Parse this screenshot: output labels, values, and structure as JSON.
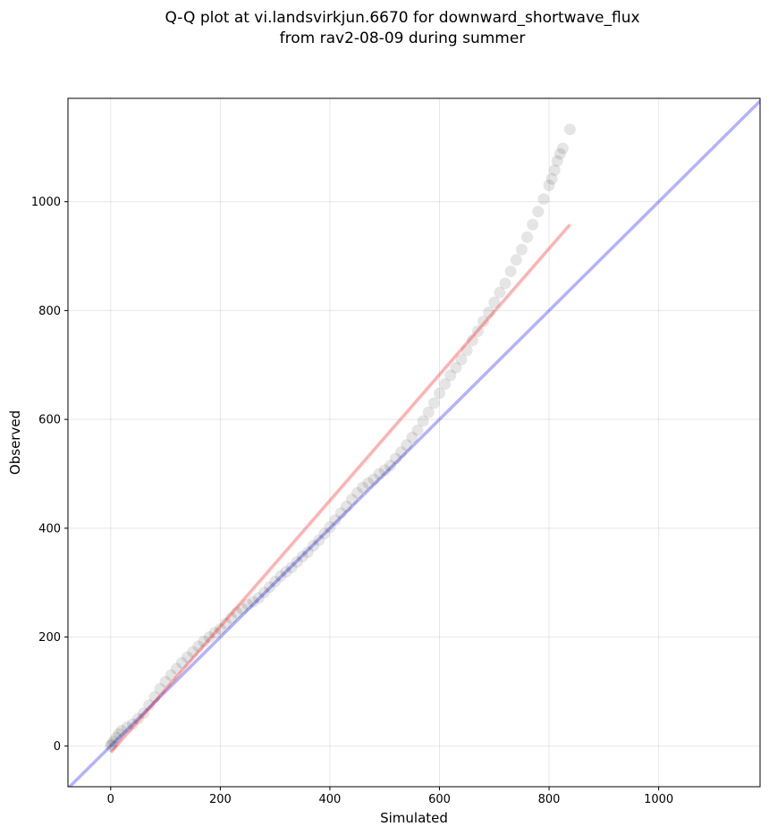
{
  "chart_data": {
    "type": "scatter",
    "title_lines": [
      "Q-Q plot at vi.landsvirkjun.6670 for downward_shortwave_flux",
      "from rav2-08-09 during summer"
    ],
    "xlabel": "Simulated",
    "ylabel": "Observed",
    "xlim": [
      -78,
      1185
    ],
    "ylim": [
      -75,
      1190
    ],
    "x_ticks": [
      0,
      200,
      400,
      600,
      800,
      1000
    ],
    "y_ticks": [
      0,
      200,
      400,
      600,
      800,
      1000
    ],
    "x_tick_labels": [
      "0",
      "200",
      "400",
      "600",
      "800",
      "1000"
    ],
    "y_tick_labels": [
      "0",
      "200",
      "400",
      "600",
      "800",
      "1000"
    ],
    "grid": true,
    "quantile_points": [
      [
        0,
        0
      ],
      [
        2,
        3
      ],
      [
        5,
        8
      ],
      [
        10,
        15
      ],
      [
        15,
        22
      ],
      [
        20,
        28
      ],
      [
        30,
        34
      ],
      [
        40,
        40
      ],
      [
        50,
        50
      ],
      [
        60,
        60
      ],
      [
        70,
        75
      ],
      [
        80,
        90
      ],
      [
        90,
        105
      ],
      [
        100,
        118
      ],
      [
        110,
        130
      ],
      [
        120,
        142
      ],
      [
        130,
        153
      ],
      [
        140,
        163
      ],
      [
        150,
        173
      ],
      [
        160,
        183
      ],
      [
        170,
        192
      ],
      [
        180,
        200
      ],
      [
        190,
        208
      ],
      [
        200,
        215
      ],
      [
        210,
        225
      ],
      [
        220,
        235
      ],
      [
        230,
        245
      ],
      [
        240,
        252
      ],
      [
        250,
        260
      ],
      [
        260,
        265
      ],
      [
        270,
        272
      ],
      [
        280,
        282
      ],
      [
        290,
        292
      ],
      [
        300,
        302
      ],
      [
        310,
        312
      ],
      [
        320,
        320
      ],
      [
        330,
        328
      ],
      [
        340,
        338
      ],
      [
        350,
        348
      ],
      [
        360,
        356
      ],
      [
        370,
        368
      ],
      [
        380,
        378
      ],
      [
        390,
        390
      ],
      [
        400,
        402
      ],
      [
        410,
        415
      ],
      [
        420,
        428
      ],
      [
        430,
        440
      ],
      [
        440,
        453
      ],
      [
        450,
        465
      ],
      [
        460,
        475
      ],
      [
        470,
        483
      ],
      [
        480,
        490
      ],
      [
        490,
        500
      ],
      [
        500,
        507
      ],
      [
        510,
        515
      ],
      [
        520,
        528
      ],
      [
        530,
        540
      ],
      [
        540,
        553
      ],
      [
        550,
        567
      ],
      [
        560,
        580
      ],
      [
        570,
        597
      ],
      [
        580,
        613
      ],
      [
        590,
        630
      ],
      [
        600,
        648
      ],
      [
        610,
        665
      ],
      [
        620,
        681
      ],
      [
        630,
        695
      ],
      [
        640,
        710
      ],
      [
        650,
        727
      ],
      [
        660,
        745
      ],
      [
        670,
        762
      ],
      [
        680,
        780
      ],
      [
        690,
        797
      ],
      [
        700,
        815
      ],
      [
        710,
        833
      ],
      [
        720,
        850
      ],
      [
        730,
        872
      ],
      [
        740,
        893
      ],
      [
        750,
        912
      ],
      [
        760,
        935
      ],
      [
        770,
        958
      ],
      [
        780,
        982
      ],
      [
        790,
        1005
      ],
      [
        800,
        1030
      ],
      [
        805,
        1042
      ],
      [
        810,
        1058
      ],
      [
        815,
        1075
      ],
      [
        820,
        1088
      ],
      [
        825,
        1098
      ],
      [
        838,
        1133
      ]
    ],
    "reference_line": {
      "color": "#0000ff",
      "x": [
        -78,
        1185
      ],
      "y": [
        -78,
        1185
      ]
    },
    "fit_line": {
      "color": "#ff0000",
      "x": [
        0,
        838
      ],
      "y": [
        -12,
        958
      ]
    },
    "point_color": "#000000"
  }
}
